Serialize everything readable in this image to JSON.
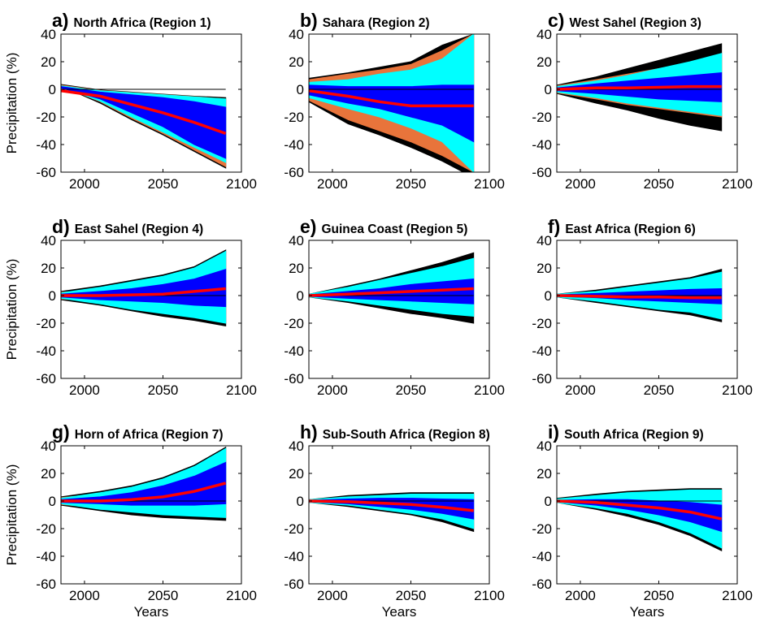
{
  "figure": {
    "x_axis_label": "Years",
    "y_axis_label": "Precipitation (%)"
  },
  "chart_data": [
    {
      "type": "area",
      "panel_letter": "a)",
      "title": "North Africa (Region 1)",
      "xlim": [
        1985,
        2100
      ],
      "ylim": [
        -60,
        40
      ],
      "xticks": [
        2000,
        2050,
        2100
      ],
      "yticks": [
        -60,
        -40,
        -20,
        0,
        20,
        40
      ],
      "x": [
        1985,
        2010,
        2030,
        2050,
        2070,
        2090
      ],
      "bands": [
        {
          "name": "outer",
          "color": "#000000",
          "lower": [
            2.5,
            -10,
            -22,
            -33,
            -45,
            -57
          ],
          "upper": [
            3.5,
            -0.5,
            -2,
            -3.5,
            -5,
            -6
          ]
        },
        {
          "name": "orange",
          "color": "#e8743b",
          "lower": [
            2.5,
            -9,
            -21,
            -32,
            -44,
            -56
          ],
          "upper": [
            3,
            -0.8,
            -2.3,
            -3.8,
            -5.3,
            -7
          ]
        },
        {
          "name": "cyan",
          "color": "#00ffff",
          "lower": [
            2,
            -8.5,
            -20,
            -31,
            -42,
            -53
          ],
          "upper": [
            2.5,
            -1,
            -2.5,
            -4,
            -5.5,
            -7
          ]
        },
        {
          "name": "blue",
          "color": "#0000ff",
          "lower": [
            1,
            -7,
            -17,
            -27,
            -40,
            -50
          ],
          "upper": [
            2,
            -2,
            -4,
            -6,
            -9,
            -13
          ]
        }
      ],
      "median": {
        "name": "median",
        "color": "#ff0000",
        "values": [
          -1,
          -5,
          -11,
          -17,
          -24,
          -32
        ]
      },
      "zero_line_end": 2090
    },
    {
      "type": "area",
      "panel_letter": "b)",
      "title": "Sahara (Region 2)",
      "xlim": [
        1985,
        2100
      ],
      "ylim": [
        -60,
        40
      ],
      "xticks": [
        2000,
        2050,
        2100
      ],
      "yticks": [
        -60,
        -40,
        -20,
        0,
        20,
        40
      ],
      "x": [
        1985,
        2010,
        2030,
        2050,
        2070,
        2090
      ],
      "bands": [
        {
          "name": "outer",
          "color": "#000000",
          "lower": [
            -9,
            -25,
            -33,
            -42,
            -52,
            -64
          ],
          "upper": [
            8,
            12,
            16,
            20,
            32,
            40
          ]
        },
        {
          "name": "orange",
          "color": "#e8743b",
          "lower": [
            -8,
            -22,
            -30,
            -38,
            -48,
            -60
          ],
          "upper": [
            7,
            11,
            14,
            18,
            28,
            40
          ]
        },
        {
          "name": "cyan",
          "color": "#00ffff",
          "lower": [
            -6,
            -14,
            -20,
            -28,
            -38,
            -60
          ],
          "upper": [
            5,
            7,
            11,
            14,
            22,
            40
          ]
        },
        {
          "name": "blue",
          "color": "#0000ff",
          "lower": [
            -4,
            -10,
            -14,
            -20,
            -26,
            -38
          ],
          "upper": [
            3,
            2,
            2,
            2,
            3,
            3
          ]
        }
      ],
      "median": {
        "name": "median",
        "color": "#ff0000",
        "values": [
          -1,
          -5,
          -9,
          -12,
          -12,
          -12
        ]
      },
      "zero_line_end": 2090
    },
    {
      "type": "area",
      "panel_letter": "c)",
      "title": "West Sahel (Region 3)",
      "xlim": [
        1985,
        2100
      ],
      "ylim": [
        -60,
        40
      ],
      "xticks": [
        2000,
        2050,
        2100
      ],
      "yticks": [
        -60,
        -40,
        -20,
        0,
        20,
        40
      ],
      "x": [
        1985,
        2010,
        2030,
        2050,
        2070,
        2090
      ],
      "bands": [
        {
          "name": "outer",
          "color": "#000000",
          "lower": [
            -3,
            -10,
            -15,
            -21,
            -26,
            -30
          ],
          "upper": [
            3,
            9,
            15,
            21,
            27,
            33
          ]
        },
        {
          "name": "orange",
          "color": "#e8743b",
          "lower": [
            -2.5,
            -7,
            -11,
            -14,
            -17,
            -20
          ],
          "upper": [
            2.5,
            7,
            11,
            15,
            19,
            24
          ]
        },
        {
          "name": "cyan",
          "color": "#00ffff",
          "lower": [
            -2,
            -6,
            -10,
            -13,
            -16,
            -19
          ],
          "upper": [
            2,
            6,
            10,
            15,
            20,
            26
          ]
        },
        {
          "name": "blue",
          "color": "#0000ff",
          "lower": [
            -1,
            -3,
            -5,
            -7,
            -8,
            -9
          ],
          "upper": [
            1,
            4,
            6,
            8,
            10,
            12
          ]
        }
      ],
      "median": {
        "name": "median",
        "color": "#ff0000",
        "values": [
          0,
          1,
          1,
          1.5,
          2,
          2
        ]
      },
      "zero_line_end": 2090
    },
    {
      "type": "area",
      "panel_letter": "d)",
      "title": "East Sahel (Region 4)",
      "xlim": [
        1985,
        2100
      ],
      "ylim": [
        -60,
        40
      ],
      "xticks": [
        2000,
        2050,
        2100
      ],
      "yticks": [
        -60,
        -40,
        -20,
        0,
        20,
        40
      ],
      "x": [
        1985,
        2010,
        2030,
        2050,
        2070,
        2090
      ],
      "bands": [
        {
          "name": "outer",
          "color": "#000000",
          "lower": [
            -3,
            -7,
            -11,
            -15,
            -18,
            -22
          ],
          "upper": [
            3,
            7,
            11,
            15,
            21,
            33
          ]
        },
        {
          "name": "orange",
          "color": "#e8743b",
          "lower": [
            -2.5,
            -4,
            -6,
            -9,
            -11,
            -13
          ],
          "upper": [
            2.5,
            4,
            6,
            9,
            12,
            16
          ]
        },
        {
          "name": "cyan",
          "color": "#00ffff",
          "lower": [
            -2,
            -6,
            -10,
            -13,
            -16,
            -20
          ],
          "upper": [
            2,
            6,
            10,
            14,
            20,
            32
          ]
        },
        {
          "name": "blue",
          "color": "#0000ff",
          "lower": [
            -1,
            -3,
            -4,
            -5,
            -7,
            -8
          ],
          "upper": [
            1,
            3,
            5,
            8,
            12,
            19
          ]
        }
      ],
      "median": {
        "name": "median",
        "color": "#ff0000",
        "values": [
          0,
          0,
          0.5,
          1,
          3,
          5
        ]
      },
      "zero_line_end": 2090
    },
    {
      "type": "area",
      "panel_letter": "e)",
      "title": "Guinea Coast (Region 5)",
      "xlim": [
        1985,
        2100
      ],
      "ylim": [
        -60,
        40
      ],
      "xticks": [
        2000,
        2050,
        2100
      ],
      "yticks": [
        -60,
        -40,
        -20,
        0,
        20,
        40
      ],
      "x": [
        1985,
        2010,
        2030,
        2050,
        2070,
        2090
      ],
      "bands": [
        {
          "name": "outer",
          "color": "#000000",
          "lower": [
            -1,
            -5,
            -9,
            -13,
            -16,
            -20
          ],
          "upper": [
            1,
            7,
            12,
            18,
            24,
            31
          ]
        },
        {
          "name": "cyan",
          "color": "#00ffff",
          "lower": [
            -1,
            -4,
            -7,
            -10,
            -13,
            -15
          ],
          "upper": [
            1,
            6,
            11,
            16,
            21,
            27
          ]
        },
        {
          "name": "blue",
          "color": "#0000ff",
          "lower": [
            -0.5,
            -2,
            -3,
            -4,
            -5,
            -6
          ],
          "upper": [
            0.5,
            3,
            5,
            8,
            10,
            12
          ]
        }
      ],
      "median": {
        "name": "median",
        "color": "#ff0000",
        "values": [
          0,
          1,
          2,
          3,
          4,
          5
        ]
      },
      "zero_line_end": 2090
    },
    {
      "type": "area",
      "panel_letter": "f)",
      "title": "East Africa (Region 6)",
      "xlim": [
        1985,
        2100
      ],
      "ylim": [
        -60,
        40
      ],
      "xticks": [
        2000,
        2050,
        2100
      ],
      "yticks": [
        -60,
        -40,
        -20,
        0,
        20,
        40
      ],
      "x": [
        1985,
        2010,
        2030,
        2050,
        2070,
        2090
      ],
      "bands": [
        {
          "name": "outer",
          "color": "#000000",
          "lower": [
            -1,
            -5,
            -8,
            -11,
            -14,
            -19
          ],
          "upper": [
            1,
            4,
            7,
            10,
            13,
            19
          ]
        },
        {
          "name": "cyan",
          "color": "#00ffff",
          "lower": [
            -1,
            -4,
            -7,
            -10,
            -12,
            -17
          ],
          "upper": [
            1,
            3,
            6,
            9,
            12,
            17
          ]
        },
        {
          "name": "blue",
          "color": "#0000ff",
          "lower": [
            -0.5,
            -1.5,
            -3,
            -4,
            -5,
            -6
          ],
          "upper": [
            0.5,
            1.5,
            2.5,
            3.5,
            4.5,
            5
          ]
        }
      ],
      "median": {
        "name": "median",
        "color": "#ff0000",
        "values": [
          0,
          -0.5,
          -1,
          -1,
          -1.5,
          -1.5
        ]
      },
      "zero_line_end": 2090
    },
    {
      "type": "area",
      "panel_letter": "g)",
      "title": "Horn of Africa (Region 7)",
      "xlim": [
        1985,
        2100
      ],
      "ylim": [
        -60,
        40
      ],
      "xticks": [
        2000,
        2050,
        2100
      ],
      "yticks": [
        -60,
        -40,
        -20,
        0,
        20,
        40
      ],
      "x": [
        1985,
        2010,
        2030,
        2050,
        2070,
        2090
      ],
      "bands": [
        {
          "name": "outer",
          "color": "#000000",
          "lower": [
            -3,
            -7,
            -10,
            -12,
            -13,
            -14
          ],
          "upper": [
            3,
            7,
            11,
            17,
            26,
            39
          ]
        },
        {
          "name": "orange",
          "color": "#e8743b",
          "lower": [
            -2.5,
            -5,
            -7,
            -8,
            -9,
            -10
          ],
          "upper": [
            2.5,
            5,
            7,
            10,
            14,
            20
          ]
        },
        {
          "name": "cyan",
          "color": "#00ffff",
          "lower": [
            -2,
            -6,
            -8,
            -10,
            -11,
            -12
          ],
          "upper": [
            2,
            6,
            10,
            16,
            25,
            38
          ]
        },
        {
          "name": "blue",
          "color": "#0000ff",
          "lower": [
            -1,
            -2,
            -3,
            -3,
            -3,
            -2
          ],
          "upper": [
            1,
            3,
            6,
            11,
            18,
            28
          ]
        }
      ],
      "median": {
        "name": "median",
        "color": "#ff0000",
        "values": [
          0,
          0,
          1,
          3,
          7,
          13
        ]
      },
      "zero_line_end": 2090
    },
    {
      "type": "area",
      "panel_letter": "h)",
      "title": "Sub-South Africa (Region 8)",
      "xlim": [
        1985,
        2100
      ],
      "ylim": [
        -60,
        40
      ],
      "xticks": [
        2000,
        2050,
        2100
      ],
      "yticks": [
        -60,
        -40,
        -20,
        0,
        20,
        40
      ],
      "x": [
        1985,
        2010,
        2030,
        2050,
        2070,
        2090
      ],
      "bands": [
        {
          "name": "outer",
          "color": "#000000",
          "lower": [
            -1,
            -4,
            -7,
            -10,
            -15,
            -22
          ],
          "upper": [
            1,
            4,
            5,
            6,
            6,
            6
          ]
        },
        {
          "name": "cyan",
          "color": "#00ffff",
          "lower": [
            -1,
            -3,
            -6,
            -9,
            -13,
            -20
          ],
          "upper": [
            1,
            3,
            4,
            5,
            5,
            5
          ]
        },
        {
          "name": "blue",
          "color": "#0000ff",
          "lower": [
            -0.5,
            -2,
            -4,
            -6,
            -9,
            -13
          ],
          "upper": [
            0.5,
            1.5,
            2,
            2,
            1.5,
            1
          ]
        }
      ],
      "median": {
        "name": "median",
        "color": "#ff0000",
        "values": [
          0,
          -0.5,
          -1.5,
          -2.5,
          -4.5,
          -7
        ]
      },
      "zero_line_end": 2090
    },
    {
      "type": "area",
      "panel_letter": "i)",
      "title": "South Africa (Region 9)",
      "xlim": [
        1985,
        2100
      ],
      "ylim": [
        -60,
        40
      ],
      "xticks": [
        2000,
        2050,
        2100
      ],
      "yticks": [
        -60,
        -40,
        -20,
        0,
        20,
        40
      ],
      "x": [
        1985,
        2010,
        2030,
        2050,
        2070,
        2090
      ],
      "bands": [
        {
          "name": "outer",
          "color": "#000000",
          "lower": [
            -1,
            -6,
            -11,
            -17,
            -25,
            -36
          ],
          "upper": [
            2,
            5,
            7,
            8,
            9,
            9
          ]
        },
        {
          "name": "cyan",
          "color": "#00ffff",
          "lower": [
            -1,
            -5,
            -9,
            -15,
            -23,
            -34
          ],
          "upper": [
            1.5,
            4,
            6,
            7,
            8,
            8
          ]
        },
        {
          "name": "blue",
          "color": "#0000ff",
          "lower": [
            -0.5,
            -3,
            -6,
            -10,
            -15,
            -22
          ],
          "upper": [
            0.5,
            1,
            1,
            0,
            -1,
            -3
          ]
        }
      ],
      "median": {
        "name": "median",
        "color": "#ff0000",
        "values": [
          0,
          -1,
          -3,
          -5,
          -8,
          -13
        ]
      },
      "zero_line_end": 2090
    }
  ]
}
